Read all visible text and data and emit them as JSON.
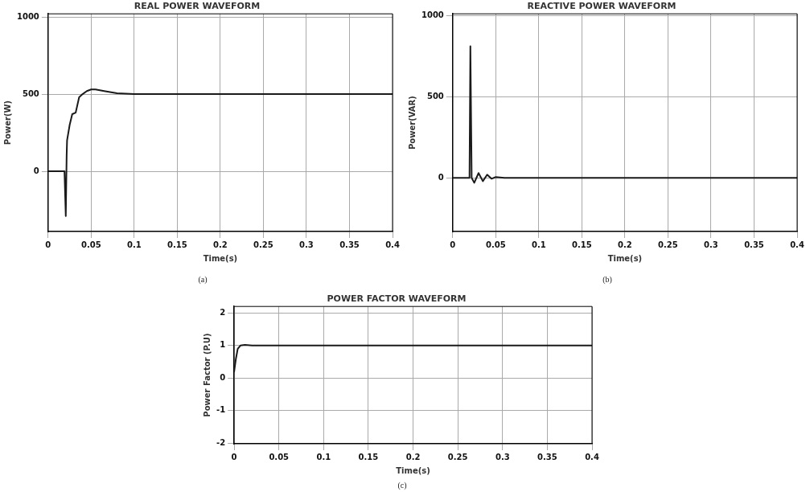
{
  "chart_data": [
    {
      "type": "line",
      "title": "REAL POWER WAVEFORM",
      "xlabel": "Time(s)",
      "ylabel": "Power(W)",
      "annotations": [
        "(a)"
      ],
      "color": "#1a1a1a",
      "marker": "none",
      "grid": true,
      "legend": false,
      "x": [
        0,
        0.019,
        0.0205,
        0.0215,
        0.022,
        0.025,
        0.028,
        0.032,
        0.036,
        0.04,
        0.045,
        0.05,
        0.055,
        0.065,
        0.08,
        0.1,
        0.2,
        0.3,
        0.4
      ],
      "values": [
        0,
        0,
        -290,
        100,
        200,
        300,
        370,
        380,
        480,
        500,
        520,
        530,
        530,
        520,
        505,
        500,
        500,
        500,
        500
      ],
      "xlim": [
        0,
        0.4
      ],
      "ylim": [
        -390,
        1020
      ],
      "xticks": [
        0,
        0.05,
        0.1,
        0.15,
        0.2,
        0.25,
        0.3,
        0.35,
        0.4
      ],
      "yticks": [
        0,
        500,
        1000
      ]
    },
    {
      "type": "line",
      "title": "REACTIVE POWER WAVEFORM",
      "xlabel": "Time(s)",
      "ylabel": "Power(VAR)",
      "annotations": [
        "(b)"
      ],
      "color": "#1a1a1a",
      "marker": "none",
      "grid": true,
      "legend": false,
      "x": [
        0,
        0.0195,
        0.0205,
        0.022,
        0.025,
        0.03,
        0.035,
        0.04,
        0.045,
        0.05,
        0.06,
        0.1,
        0.2,
        0.3,
        0.4
      ],
      "values": [
        0,
        0,
        810,
        0,
        -30,
        30,
        -20,
        20,
        -5,
        5,
        0,
        0,
        0,
        0,
        0
      ],
      "xlim": [
        0,
        0.4
      ],
      "ylim": [
        -330,
        1010
      ],
      "xticks": [
        0,
        0.05,
        0.1,
        0.15,
        0.2,
        0.25,
        0.3,
        0.35,
        0.4
      ],
      "yticks": [
        0,
        500,
        1000
      ]
    },
    {
      "type": "line",
      "title": "POWER FACTOR WAVEFORM",
      "xlabel": "Time(s)",
      "ylabel": "Power Factor (P.U)",
      "annotations": [
        "(c)"
      ],
      "color": "#1a1a1a",
      "marker": "none",
      "grid": true,
      "legend": false,
      "x": [
        0,
        0.002,
        0.004,
        0.007,
        0.012,
        0.02,
        0.1,
        0.2,
        0.3,
        0.4
      ],
      "values": [
        0.2,
        0.6,
        0.9,
        1.0,
        1.02,
        1.0,
        1.0,
        1.0,
        1.0,
        1.0
      ],
      "xlim": [
        0,
        0.4
      ],
      "ylim": [
        -2.02,
        2.2
      ],
      "xticks": [
        0,
        0.05,
        0.1,
        0.15,
        0.2,
        0.25,
        0.3,
        0.35,
        0.4
      ],
      "yticks": [
        -2,
        -1,
        0,
        1,
        2
      ]
    }
  ]
}
